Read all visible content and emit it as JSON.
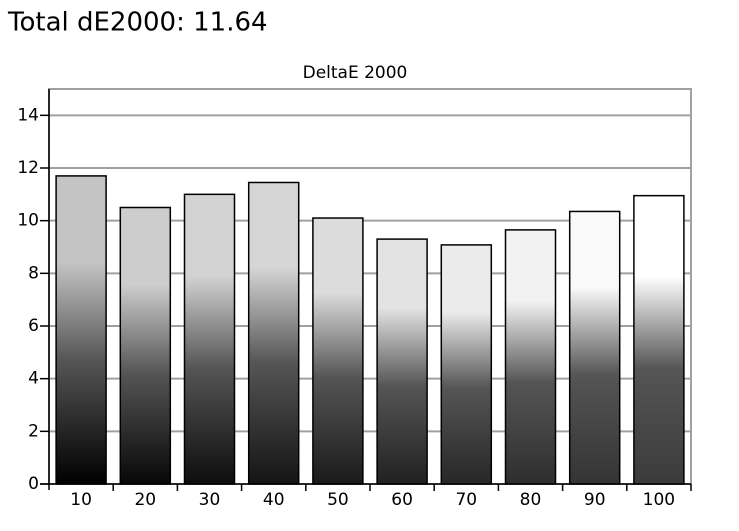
{
  "header": {
    "title": "Total dE2000: 11.64"
  },
  "chart_data": {
    "type": "bar",
    "title": "DeltaE 2000",
    "categories": [
      "10",
      "20",
      "30",
      "40",
      "50",
      "60",
      "70",
      "80",
      "90",
      "100"
    ],
    "values": [
      11.7,
      10.5,
      11.0,
      11.45,
      10.1,
      9.3,
      9.08,
      9.65,
      10.35,
      10.95
    ],
    "colors": [
      "#c4c4c4",
      "#cdcdcd",
      "#d3d3d3",
      "#d6d6d6",
      "#dcdcdc",
      "#e3e3e3",
      "#ebebeb",
      "#f2f2f2",
      "#f9f9f9",
      "#ffffff"
    ],
    "ylim": [
      0,
      15
    ],
    "yticks": [
      0,
      2,
      4,
      6,
      8,
      10,
      12,
      14
    ],
    "grid": true
  }
}
